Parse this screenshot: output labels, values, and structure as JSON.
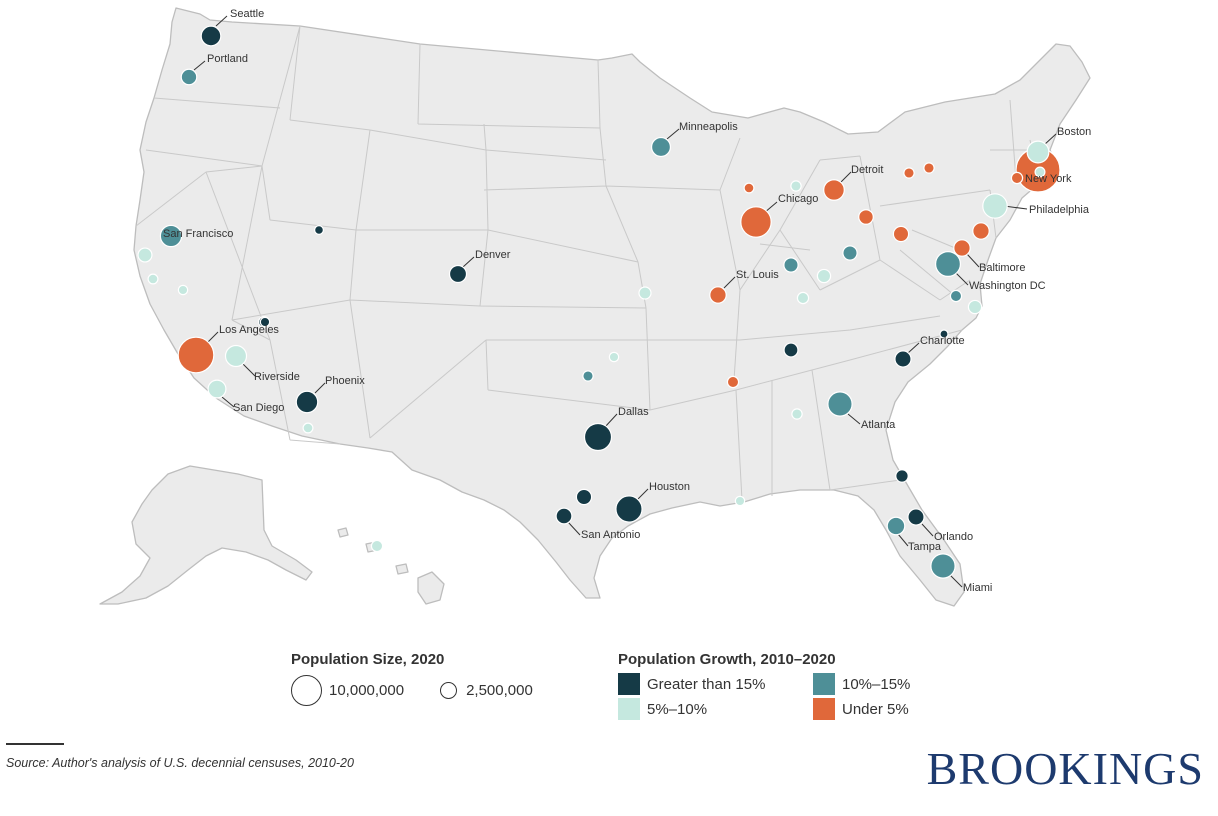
{
  "colors": {
    "greater_than_15": "#153a46",
    "10_to_15": "#4e8f97",
    "5_to_10": "#c5e8df",
    "under_5": "#e0683a",
    "land": "#ebebeb",
    "border": "#c9c9c9",
    "brand": "#1d3a6e"
  },
  "legend": {
    "size_title": "Population Size, 2020",
    "size_items": [
      {
        "label": "10,000,000",
        "value": 10000000
      },
      {
        "label": "2,500,000",
        "value": 2500000
      }
    ],
    "growth_title": "Population Growth, 2010–2020",
    "growth_items": [
      {
        "key": "greater_than_15",
        "label": "Greater than 15%"
      },
      {
        "key": "10_to_15",
        "label": "10%–15%"
      },
      {
        "key": "5_to_10",
        "label": "5%–10%"
      },
      {
        "key": "under_5",
        "label": "Under 5%"
      }
    ]
  },
  "source_note": "Source: Author's analysis of U.S. decennial censuses, 2010-20",
  "brand": "BROOKINGS",
  "cities": [
    {
      "name": "Seattle",
      "growth": "greater_than_15",
      "pop": 4.0
    },
    {
      "name": "Portland",
      "growth": "10_to_15",
      "pop": 2.5
    },
    {
      "name": "San Francisco",
      "growth": "10_to_15",
      "pop": 4.7
    },
    {
      "name": "",
      "growth": "5_to_10",
      "pop": 2.0
    },
    {
      "name": "",
      "growth": "5_to_10",
      "pop": 1.0
    },
    {
      "name": "",
      "growth": "5_to_10",
      "pop": 0.9
    },
    {
      "name": "Los Angeles",
      "growth": "under_5",
      "pop": 13.2
    },
    {
      "name": "",
      "growth": "greater_than_15",
      "pop": 0.9
    },
    {
      "name": "Riverside",
      "growth": "5_to_10",
      "pop": 4.6
    },
    {
      "name": "San Diego",
      "growth": "5_to_10",
      "pop": 3.3
    },
    {
      "name": "Phoenix",
      "growth": "greater_than_15",
      "pop": 4.8
    },
    {
      "name": "",
      "growth": "5_to_10",
      "pop": 1.0
    },
    {
      "name": "",
      "growth": "greater_than_15",
      "pop": 0.8
    },
    {
      "name": "",
      "growth": "greater_than_15",
      "pop": 1.2
    },
    {
      "name": "Denver",
      "growth": "greater_than_15",
      "pop": 3.0
    },
    {
      "name": "Minneapolis",
      "growth": "10_to_15",
      "pop": 3.7
    },
    {
      "name": "",
      "growth": "5_to_10",
      "pop": 1.5
    },
    {
      "name": "",
      "growth": "10_to_15",
      "pop": 1.1
    },
    {
      "name": "",
      "growth": "5_to_10",
      "pop": 0.9
    },
    {
      "name": "Dallas",
      "growth": "greater_than_15",
      "pop": 7.6
    },
    {
      "name": "Houston",
      "growth": "greater_than_15",
      "pop": 7.1
    },
    {
      "name": "",
      "growth": "greater_than_15",
      "pop": 2.4
    },
    {
      "name": "San Antonio",
      "growth": "greater_than_15",
      "pop": 2.6
    },
    {
      "name": "",
      "growth": "5_to_10",
      "pop": 0.9
    },
    {
      "name": "Chicago",
      "growth": "under_5",
      "pop": 9.6
    },
    {
      "name": "",
      "growth": "under_5",
      "pop": 1.0
    },
    {
      "name": "",
      "growth": "5_to_10",
      "pop": 1.1
    },
    {
      "name": "Detroit",
      "growth": "under_5",
      "pop": 4.4
    },
    {
      "name": "St. Louis",
      "growth": "under_5",
      "pop": 2.8
    },
    {
      "name": "",
      "growth": "10_to_15",
      "pop": 2.1
    },
    {
      "name": "",
      "growth": "5_to_10",
      "pop": 1.8
    },
    {
      "name": "",
      "growth": "5_to_10",
      "pop": 1.3
    },
    {
      "name": "",
      "growth": "under_5",
      "pop": 2.2
    },
    {
      "name": "",
      "growth": "10_to_15",
      "pop": 2.1
    },
    {
      "name": "",
      "growth": "under_5",
      "pop": 2.4
    },
    {
      "name": "",
      "growth": "under_5",
      "pop": 1.1
    },
    {
      "name": "",
      "growth": "under_5",
      "pop": 1.1
    },
    {
      "name": "",
      "growth": "under_5",
      "pop": 1.3
    },
    {
      "name": "Boston",
      "growth": "5_to_10",
      "pop": 4.9
    },
    {
      "name": "New York",
      "growth": "under_5",
      "pop": 20.1
    },
    {
      "name": "Philadelphia",
      "growth": "5_to_10",
      "pop": 6.2
    },
    {
      "name": "",
      "growth": "under_5",
      "pop": 2.8
    },
    {
      "name": "Baltimore",
      "growth": "under_5",
      "pop": 2.8
    },
    {
      "name": "Washington DC",
      "growth": "10_to_15",
      "pop": 6.4
    },
    {
      "name": "",
      "growth": "10_to_15",
      "pop": 1.3
    },
    {
      "name": "",
      "growth": "5_to_10",
      "pop": 1.8
    },
    {
      "name": "",
      "growth": "greater_than_15",
      "pop": 0.3
    },
    {
      "name": "Charlotte",
      "growth": "greater_than_15",
      "pop": 2.7
    },
    {
      "name": "",
      "growth": "greater_than_15",
      "pop": 2.0
    },
    {
      "name": "",
      "growth": "under_5",
      "pop": 1.3
    },
    {
      "name": "Atlanta",
      "growth": "10_to_15",
      "pop": 6.1
    },
    {
      "name": "",
      "growth": "5_to_10",
      "pop": 1.1
    },
    {
      "name": "",
      "growth": "5_to_10",
      "pop": 1.3
    },
    {
      "name": "",
      "growth": "greater_than_15",
      "pop": 1.6
    },
    {
      "name": "Orlando",
      "growth": "greater_than_15",
      "pop": 2.7
    },
    {
      "name": "Tampa",
      "growth": "10_to_15",
      "pop": 3.2
    },
    {
      "name": "Miami",
      "growth": "10_to_15",
      "pop": 6.1
    },
    {
      "name": "",
      "growth": "5_to_10",
      "pop": 1.0
    }
  ]
}
